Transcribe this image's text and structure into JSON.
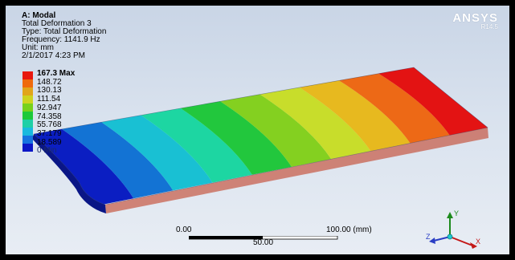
{
  "info": {
    "title": "A: Modal",
    "result": "Total Deformation 3",
    "type": "Type: Total Deformation",
    "frequency": "Frequency: 1141.9 Hz",
    "unit": "Unit: mm",
    "date": "2/1/2017 4:23 PM"
  },
  "brand": {
    "name": "ANSYS",
    "version": "R14.5"
  },
  "legend": {
    "labels": [
      "167.3 Max",
      "148.72",
      "130.13",
      "111.54",
      "92.947",
      "74.358",
      "55.768",
      "37.179",
      "18.589",
      "0 Min"
    ],
    "colors": [
      "#e8170e",
      "#ef6a0c",
      "#e1a51a",
      "#cdd31f",
      "#78d11b",
      "#1cc93a",
      "#1fcfa6",
      "#19b9de",
      "#1673e0",
      "#0b16c6"
    ]
  },
  "model": {
    "band_colors": [
      "#0b1ec2",
      "#1373d4",
      "#19c0d3",
      "#1dd6a2",
      "#22c73d",
      "#84d020",
      "#c8dd2b",
      "#e7b91f",
      "#ed6916",
      "#e31313"
    ]
  },
  "scale": {
    "left": "0.00",
    "mid": "50.00",
    "right": "100.00 (mm)"
  },
  "triad": {
    "x": "X",
    "y": "Y",
    "z": "Z"
  }
}
